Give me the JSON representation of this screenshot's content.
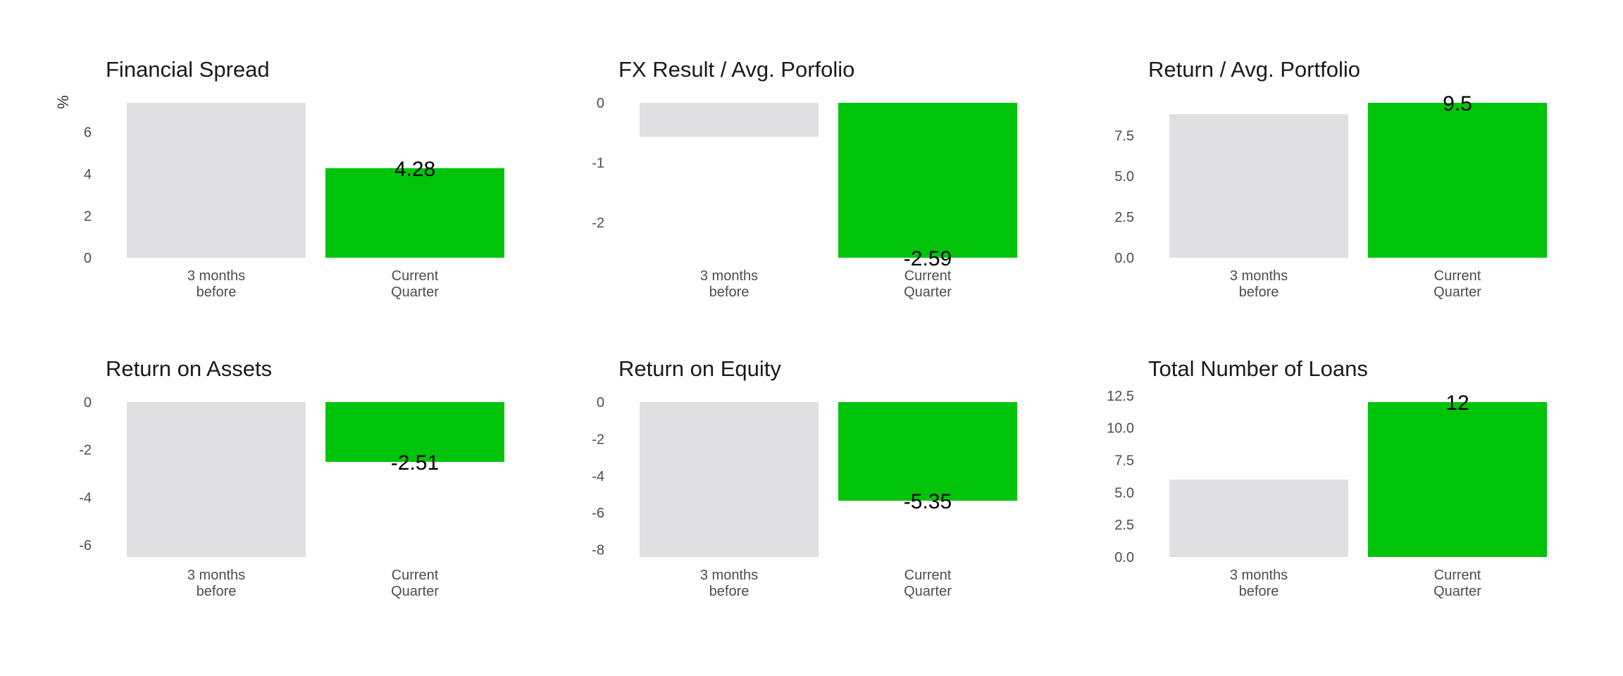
{
  "colors": {
    "previous": "#e0e0e2",
    "current": "#00c40a",
    "text": "#1a1a1a",
    "tick": "#4d4d4d"
  },
  "chart_data": [
    {
      "type": "bar",
      "title": "Financial Spread",
      "ylabel": "%",
      "categories": [
        "3 months\nbefore",
        "Current\nQuarter"
      ],
      "values": [
        7.4,
        4.28
      ],
      "labels": [
        "",
        "4.28"
      ],
      "ylim": [
        0,
        7.4
      ],
      "yticks": [
        0,
        2,
        4,
        6
      ],
      "ytick_labels": [
        "0",
        "2",
        "4",
        "6"
      ],
      "grid": false
    },
    {
      "type": "bar",
      "title": "FX Result / Avg. Porfolio",
      "ylabel": "",
      "categories": [
        "3 months\nbefore",
        "Current\nQuarter"
      ],
      "values": [
        -0.57,
        -2.59
      ],
      "labels": [
        "",
        "-2.59"
      ],
      "ylim": [
        -2.59,
        0
      ],
      "yticks": [
        0,
        -1,
        -2
      ],
      "ytick_labels": [
        "0",
        "-1",
        "-2"
      ],
      "grid": false
    },
    {
      "type": "bar",
      "title": "Return / Avg. Portfolio",
      "ylabel": "",
      "categories": [
        "3 months\nbefore",
        "Current\nQuarter"
      ],
      "values": [
        8.8,
        9.5
      ],
      "labels": [
        "",
        "9.5"
      ],
      "ylim": [
        0,
        9.5
      ],
      "yticks": [
        0,
        2.5,
        5,
        7.5
      ],
      "ytick_labels": [
        "0.0",
        "2.5",
        "5.0",
        "7.5"
      ],
      "grid": false
    },
    {
      "type": "bar",
      "title": "Return on Assets",
      "ylabel": "",
      "categories": [
        "3 months\nbefore",
        "Current\nQuarter"
      ],
      "values": [
        -6.5,
        -2.51
      ],
      "labels": [
        "",
        "-2.51"
      ],
      "ylim": [
        -6.5,
        0
      ],
      "yticks": [
        0,
        -2,
        -4,
        -6
      ],
      "ytick_labels": [
        "0",
        "-2",
        "-4",
        "-6"
      ],
      "grid": false
    },
    {
      "type": "bar",
      "title": "Return on Equity",
      "ylabel": "",
      "categories": [
        "3 months\nbefore",
        "Current\nQuarter"
      ],
      "values": [
        -8.4,
        -5.35
      ],
      "labels": [
        "",
        "-5.35"
      ],
      "ylim": [
        -8.4,
        0
      ],
      "yticks": [
        0,
        -2,
        -4,
        -6,
        -8
      ],
      "ytick_labels": [
        "0",
        "-2",
        "-4",
        "-6",
        "-8"
      ],
      "grid": false
    },
    {
      "type": "bar",
      "title": "Total Number of Loans",
      "ylabel": "",
      "categories": [
        "3 months\nbefore",
        "Current\nQuarter"
      ],
      "values": [
        6,
        12
      ],
      "labels": [
        "",
        "12"
      ],
      "ylim": [
        0,
        12
      ],
      "yticks": [
        0,
        2.5,
        5,
        7.5,
        10,
        12.5
      ],
      "ytick_labels": [
        "0.0",
        "2.5",
        "5.0",
        "7.5",
        "10.0",
        "12.5"
      ],
      "grid": false
    }
  ]
}
